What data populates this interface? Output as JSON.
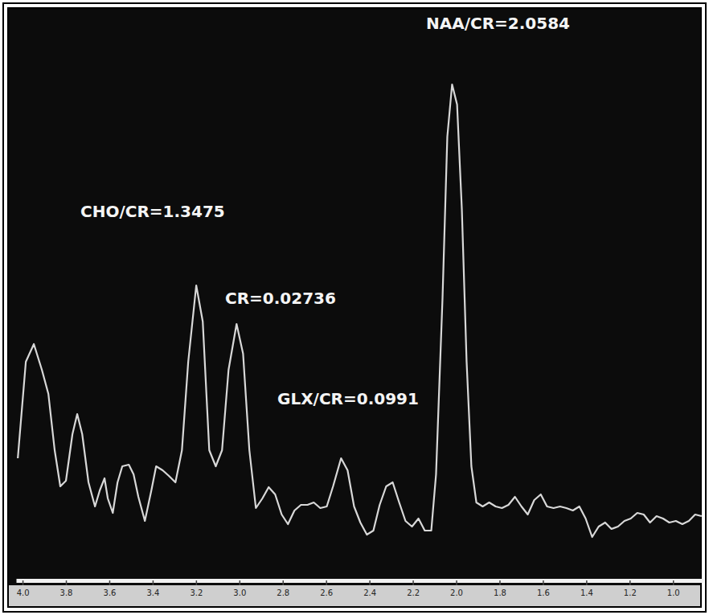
{
  "chart_data": {
    "type": "line",
    "annotations": [
      "CHO/CR=1.3475",
      "CR=0.02736",
      "GLX/CR=0.0991",
      "NAA/CR=2.0584"
    ],
    "color": "#d8d8d8",
    "tick_labels": "x",
    "grid": false,
    "xlim": [
      4.03,
      0.86
    ],
    "xticks": [
      {
        "value": 4,
        "label": "4.0"
      },
      3.8,
      3.6,
      3.4,
      3.2,
      {
        "value": 3,
        "label": "3.0"
      },
      2.8,
      2.6,
      2.4,
      2.2,
      {
        "value": 2,
        "label": "2.0"
      },
      1.8,
      1.6,
      1.4,
      1.2,
      {
        "value": 1,
        "label": "1.0"
      }
    ],
    "ylim": [
      0,
      640
    ],
    "x": [
      4.022,
      3.985,
      3.948,
      3.911,
      3.881,
      3.852,
      3.826,
      3.8,
      3.77,
      3.748,
      3.725,
      3.696,
      3.666,
      3.644,
      3.622,
      3.607,
      3.584,
      3.562,
      3.54,
      3.51,
      3.488,
      3.466,
      3.436,
      3.406,
      3.384,
      3.354,
      3.325,
      3.295,
      3.265,
      3.236,
      3.199,
      3.169,
      3.139,
      3.109,
      3.08,
      3.05,
      3.013,
      2.983,
      2.954,
      2.924,
      2.894,
      2.865,
      2.835,
      2.805,
      2.776,
      2.746,
      2.716,
      2.686,
      2.657,
      2.627,
      2.597,
      2.568,
      2.531,
      2.501,
      2.471,
      2.442,
      2.412,
      2.382,
      2.353,
      2.323,
      2.293,
      2.263,
      2.234,
      2.204,
      2.174,
      2.145,
      2.115,
      2.093,
      2.063,
      2.041,
      2.019,
      1.996,
      1.974,
      1.952,
      1.93,
      1.907,
      1.878,
      1.848,
      1.818,
      1.789,
      1.759,
      1.729,
      1.699,
      1.67,
      1.64,
      1.61,
      1.581,
      1.551,
      1.521,
      1.492,
      1.462,
      1.432,
      1.403,
      1.373,
      1.343,
      1.313,
      1.284,
      1.254,
      1.224,
      1.195,
      1.165,
      1.135,
      1.106,
      1.076,
      1.046,
      1.017,
      0.987,
      0.957,
      0.927,
      0.898,
      0.868
    ],
    "values": [
      130,
      250,
      272,
      240,
      210,
      140,
      95,
      102,
      160,
      185,
      160,
      100,
      70,
      90,
      105,
      80,
      62,
      100,
      120,
      122,
      110,
      82,
      52,
      90,
      120,
      115,
      108,
      100,
      140,
      250,
      345,
      300,
      140,
      120,
      140,
      240,
      297,
      260,
      140,
      68,
      80,
      94,
      85,
      60,
      48,
      65,
      72,
      72,
      75,
      68,
      70,
      95,
      130,
      115,
      70,
      50,
      35,
      40,
      72,
      95,
      100,
      75,
      52,
      45,
      55,
      40,
      40,
      110,
      330,
      530,
      595,
      570,
      440,
      250,
      120,
      75,
      70,
      75,
      70,
      68,
      72,
      82,
      70,
      60,
      78,
      85,
      70,
      68,
      70,
      68,
      65,
      70,
      55,
      32,
      45,
      50,
      42,
      45,
      52,
      55,
      62,
      60,
      50,
      58,
      55,
      50,
      52,
      48,
      52,
      60,
      58
    ]
  }
}
